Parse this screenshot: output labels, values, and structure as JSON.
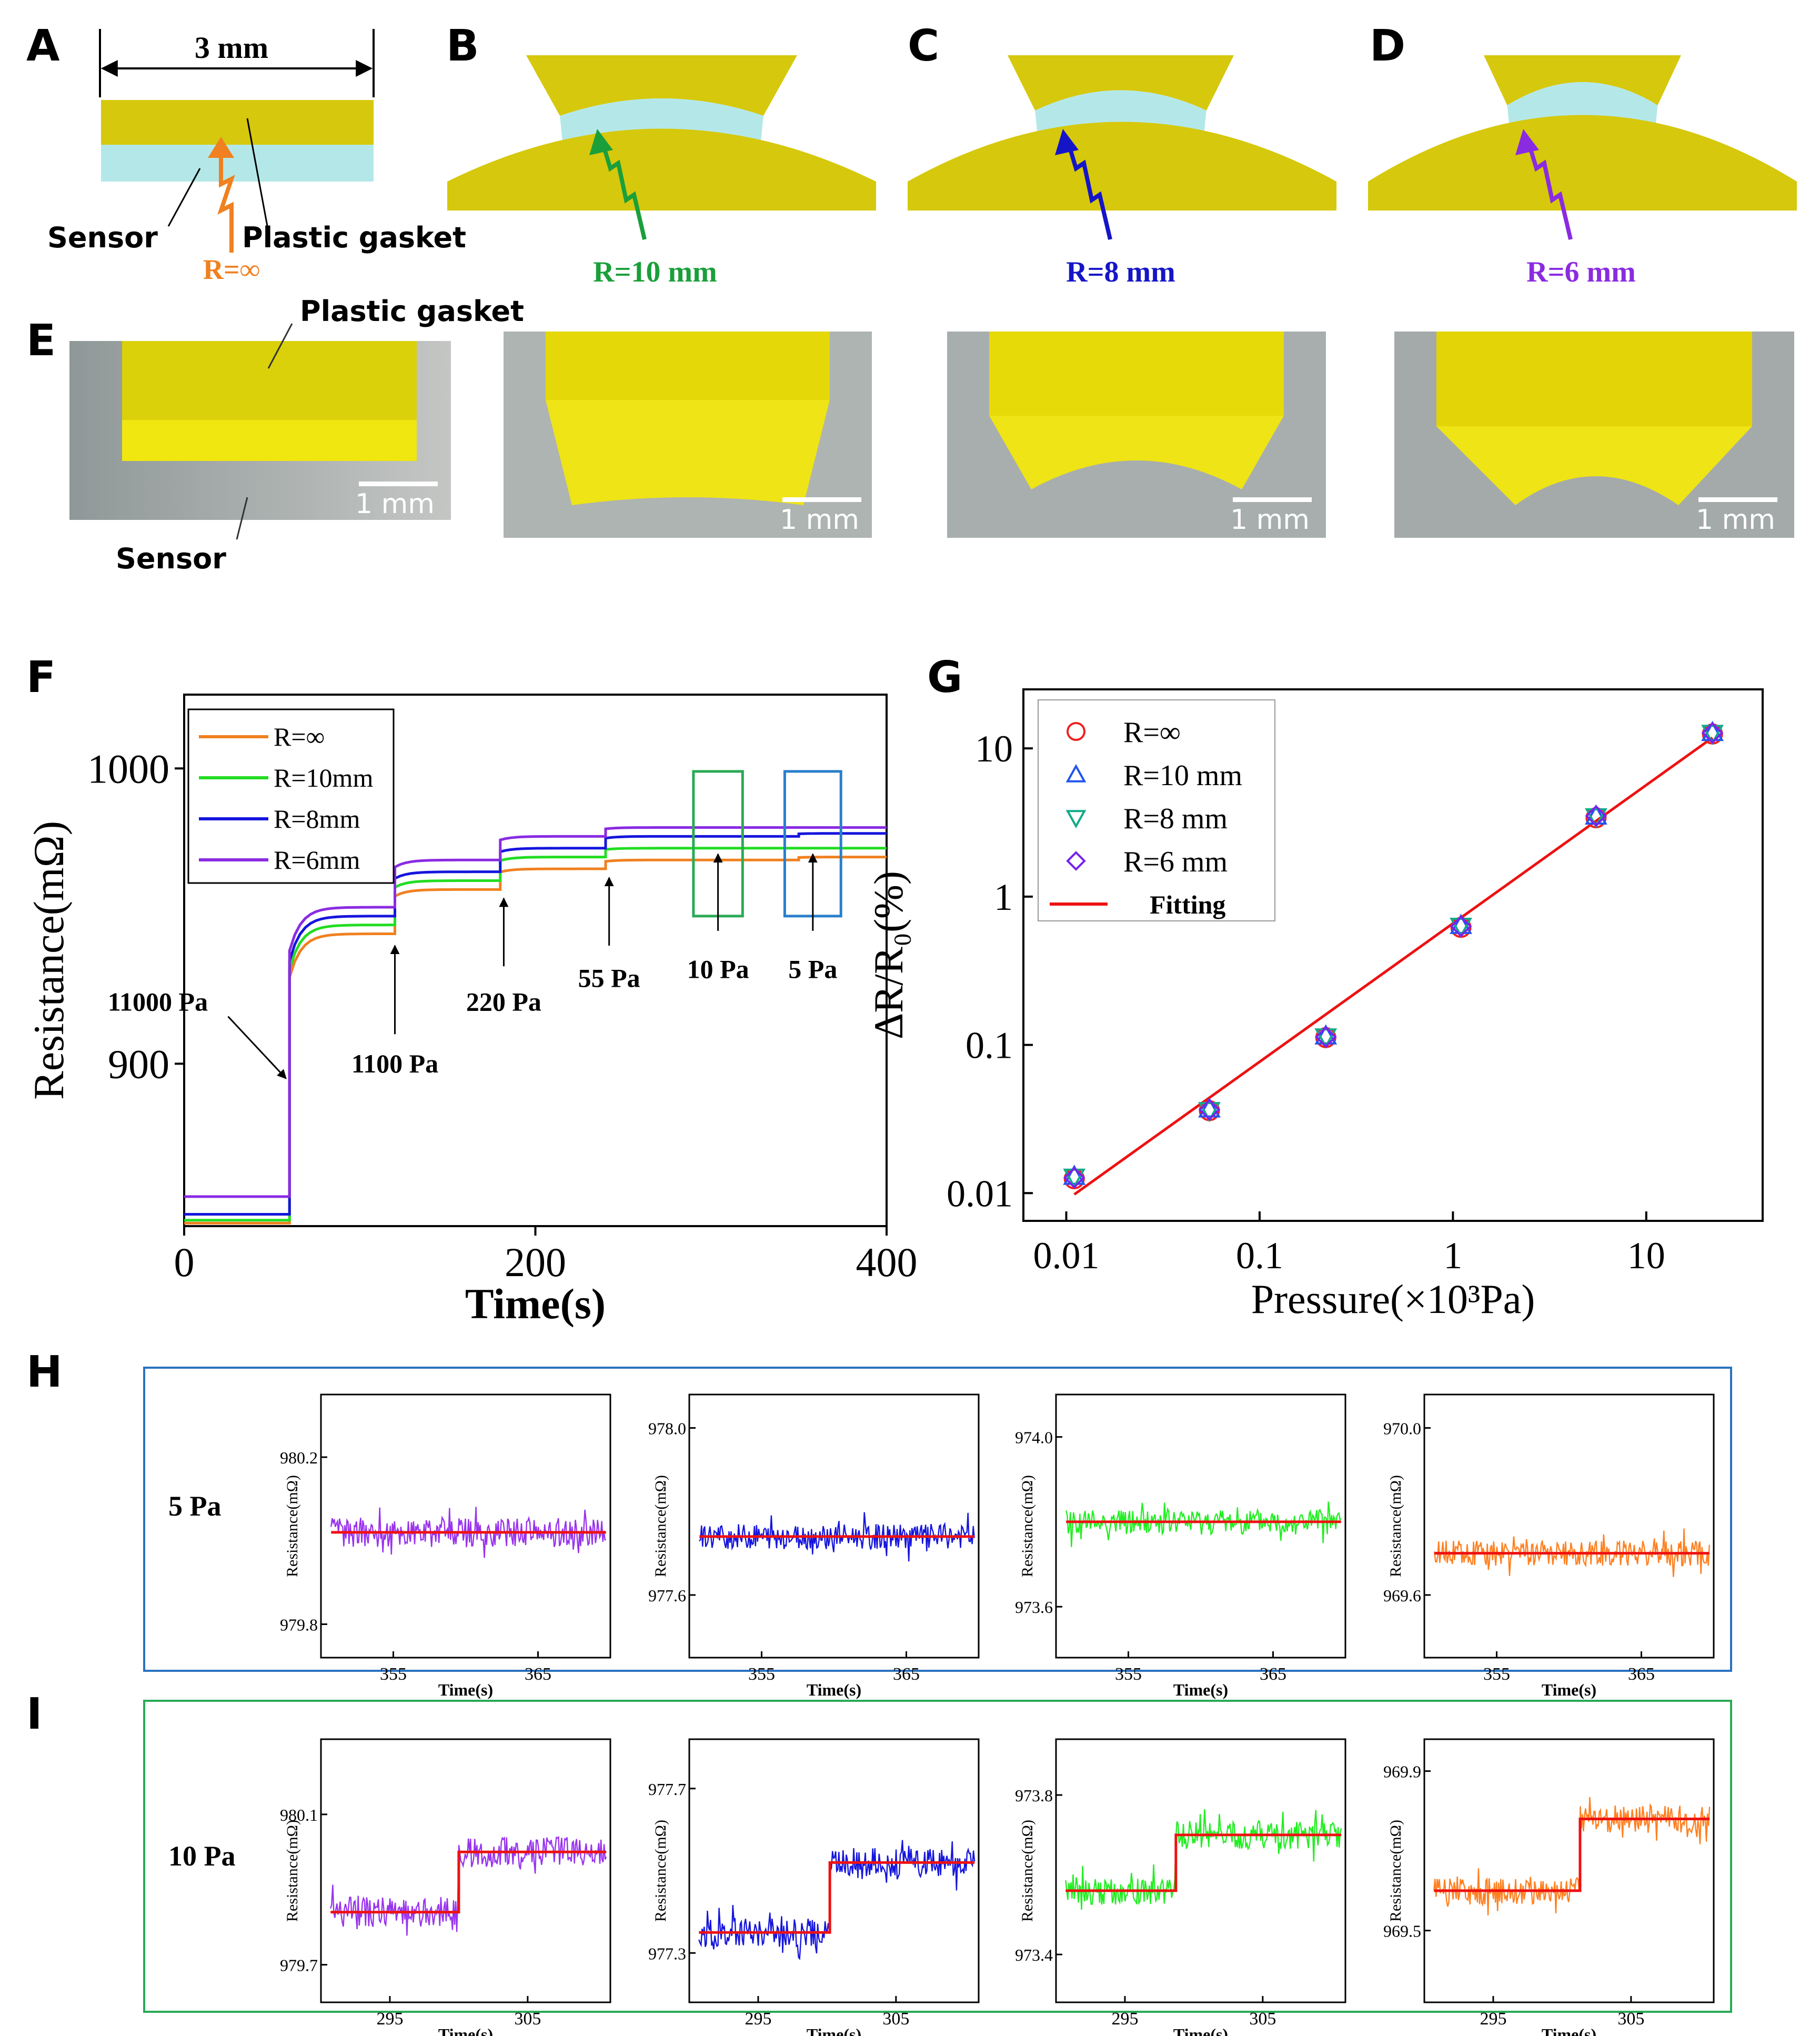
{
  "panels": {
    "a": "A",
    "b": "B",
    "c": "C",
    "d": "D",
    "e": "E",
    "f": "F",
    "g": "G",
    "h": "H",
    "i": "I"
  },
  "schematic": {
    "width_label": "3 mm",
    "sensor_label": "Sensor",
    "gasket_label": "Plastic gasket",
    "radii": [
      {
        "label": "R=∞",
        "color": "#f08020"
      },
      {
        "label": "R=10 mm",
        "color": "#1a9f3a"
      },
      {
        "label": "R=8 mm",
        "color": "#1515c8"
      },
      {
        "label": "R=6 mm",
        "color": "#8a2be2"
      }
    ],
    "gasket_color": "#d6c80c",
    "sensor_color": "#b4e8e8"
  },
  "photos": {
    "gasket_label": "Plastic gasket",
    "sensor_label": "Sensor",
    "scale_label": "1 mm"
  },
  "chart_data": [
    {
      "id": "F",
      "type": "line",
      "xlabel": "Time(s)",
      "ylabel": "Resistance(mΩ)",
      "xlim": [
        0,
        400
      ],
      "ylim": [
        845,
        1025
      ],
      "xticks": [
        0,
        200,
        400
      ],
      "yticks": [
        900,
        1000
      ],
      "legend_position": "top-left",
      "series": [
        {
          "name": "R=∞",
          "color": "#f08020",
          "levels": [
            846,
            944,
            959,
            966,
            969,
            969,
            970
          ]
        },
        {
          "name": "R=10mm",
          "color": "#22dd22",
          "levels": [
            847,
            947,
            962,
            970,
            973,
            973,
            973
          ]
        },
        {
          "name": "R=8mm",
          "color": "#1515dd",
          "levels": [
            849,
            950,
            965,
            973,
            977,
            977,
            978
          ]
        },
        {
          "name": "R=6mm",
          "color": "#8a2be2",
          "levels": [
            855,
            953,
            969,
            977,
            980,
            980,
            980
          ]
        }
      ],
      "step_times": [
        0,
        60,
        120,
        180,
        240,
        300,
        350,
        400
      ],
      "annotations": [
        "11000 Pa",
        "1100 Pa",
        "220 Pa",
        "55 Pa",
        "10 Pa",
        "5 Pa"
      ],
      "highlight_boxes": [
        {
          "label": "10 Pa",
          "color": "#2aaa55",
          "x": [
            290,
            318
          ]
        },
        {
          "label": "5 Pa",
          "color": "#2a7fcc",
          "x": [
            342,
            374
          ]
        }
      ]
    },
    {
      "id": "G",
      "type": "scatter",
      "xlabel": "Pressure(×10³Pa)",
      "ylabel": "ΔR/R₀(%)",
      "xscale": "log",
      "yscale": "log",
      "xlim": [
        0.006,
        40
      ],
      "ylim": [
        0.0065,
        25
      ],
      "xticks": [
        "0.01",
        "0.1",
        "1",
        "10"
      ],
      "yticks": [
        "0.01",
        "0.1",
        "1",
        "10"
      ],
      "legend_position": "top-left",
      "x": [
        0.011,
        0.055,
        0.22,
        1.1,
        5.5,
        22
      ],
      "series": [
        {
          "name": "R=∞",
          "marker": "circle",
          "color": "#ee2222",
          "values": [
            0.0125,
            0.036,
            0.112,
            0.62,
            3.4,
            12.5
          ]
        },
        {
          "name": "R=10 mm",
          "marker": "triangle-up",
          "color": "#2255ee",
          "values": [
            0.013,
            0.037,
            0.115,
            0.64,
            3.5,
            12.8
          ]
        },
        {
          "name": "R=8 mm",
          "marker": "triangle-down",
          "color": "#11aa88",
          "values": [
            0.0128,
            0.036,
            0.113,
            0.63,
            3.45,
            12.6
          ]
        },
        {
          "name": "R=6 mm",
          "marker": "diamond",
          "color": "#7722ee",
          "values": [
            0.0127,
            0.0365,
            0.113,
            0.63,
            3.5,
            12.7
          ]
        }
      ],
      "fit": {
        "name": "Fitting",
        "color": "#ee1111",
        "x": [
          0.011,
          22
        ],
        "y": [
          0.0098,
          11.8
        ]
      }
    },
    {
      "id": "H",
      "type": "line",
      "row_label": "5 Pa",
      "border_color": "#2a72c0",
      "xlabel": "Time(s)",
      "ylabel": "Resistance(mΩ)",
      "xlim": [
        350,
        370
      ],
      "xticks": [
        355,
        365
      ],
      "subplots": [
        {
          "color": "#9933ee",
          "ylim": [
            979.72,
            980.35
          ],
          "yticks": [
            "980.2",
            "979.8"
          ],
          "mean": 980.02,
          "noise": 0.035,
          "step_at": null,
          "step_to": null
        },
        {
          "color": "#1515dd",
          "ylim": [
            977.45,
            978.08
          ],
          "yticks": [
            "978.0",
            "977.6"
          ],
          "mean": 977.74,
          "noise": 0.03,
          "step_at": null,
          "step_to": null
        },
        {
          "color": "#22ee22",
          "ylim": [
            973.48,
            974.1
          ],
          "yticks": [
            "974.0",
            "973.6"
          ],
          "mean": 973.8,
          "noise": 0.03,
          "step_at": null,
          "step_to": null
        },
        {
          "color": "#ff8020",
          "ylim": [
            969.45,
            970.08
          ],
          "yticks": [
            "970.0",
            "969.6"
          ],
          "mean": 969.7,
          "noise": 0.03,
          "step_at": null,
          "step_to": null
        }
      ]
    },
    {
      "id": "I",
      "type": "line",
      "row_label": "10 Pa",
      "border_color": "#2aaa55",
      "xlabel": "Time(s)",
      "ylabel": "Resistance(mΩ)",
      "xlim": [
        290,
        311
      ],
      "xticks": [
        295,
        305
      ],
      "subplots": [
        {
          "color": "#9933ee",
          "ylim": [
            979.6,
            980.3
          ],
          "yticks": [
            "980.1",
            "979.7"
          ],
          "mean": 979.84,
          "noise": 0.04,
          "step_at": 300,
          "step_to": 980.0
        },
        {
          "color": "#1515dd",
          "ylim": [
            977.18,
            977.82
          ],
          "yticks": [
            "977.7",
            "977.3"
          ],
          "mean": 977.35,
          "noise": 0.035,
          "step_at": 300.2,
          "step_to": 977.52
        },
        {
          "color": "#22ee22",
          "ylim": [
            973.28,
            973.94
          ],
          "yticks": [
            "973.8",
            "973.4"
          ],
          "mean": 973.56,
          "noise": 0.035,
          "step_at": 298.7,
          "step_to": 973.7
        },
        {
          "color": "#ff8020",
          "ylim": [
            969.32,
            969.98
          ],
          "yticks": [
            "969.9",
            "969.5"
          ],
          "mean": 969.6,
          "noise": 0.035,
          "step_at": 301.3,
          "step_to": 969.78
        }
      ]
    }
  ]
}
